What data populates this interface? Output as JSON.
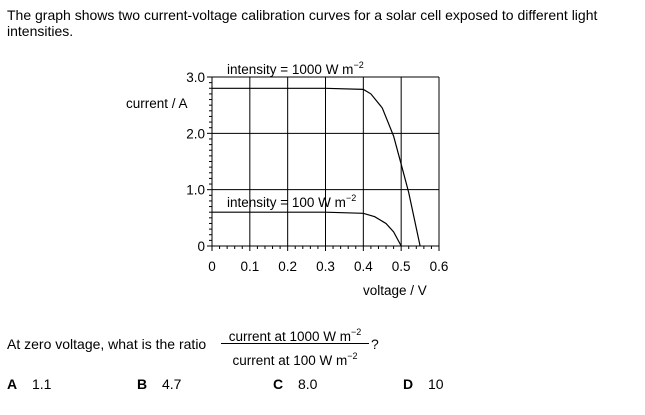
{
  "question": {
    "intro": "The graph shows two current-voltage calibration curves for a solar cell exposed to different light intensities.",
    "prompt_prefix": "At zero voltage, what is the ratio",
    "numerator": "current at 1000 W m",
    "denominator": "current at 100 W m",
    "exponent": "−2",
    "prompt_suffix": "?"
  },
  "options": [
    {
      "letter": "A",
      "value": "1.1"
    },
    {
      "letter": "B",
      "value": "4.7"
    },
    {
      "letter": "C",
      "value": "8.0"
    },
    {
      "letter": "D",
      "value": "10"
    }
  ],
  "chart_data": {
    "type": "line",
    "xlabel": "voltage / V",
    "ylabel": "current / A",
    "xlim": [
      0,
      0.6
    ],
    "ylim": [
      0,
      3.0
    ],
    "x_ticks": [
      "0",
      "0.1",
      "0.2",
      "0.3",
      "0.4",
      "0.5",
      "0.6"
    ],
    "y_ticks": [
      "0",
      "1.0",
      "2.0",
      "3.0"
    ],
    "grid": true,
    "series": [
      {
        "name": "intensity = 1000 W m",
        "name_exponent": "−2",
        "x": [
          0,
          0.1,
          0.2,
          0.3,
          0.4,
          0.42,
          0.45,
          0.48,
          0.5,
          0.52,
          0.55
        ],
        "y": [
          2.8,
          2.8,
          2.8,
          2.8,
          2.78,
          2.7,
          2.45,
          1.95,
          1.45,
          0.95,
          0
        ]
      },
      {
        "name": "intensity = 100 W m",
        "name_exponent": "−2",
        "x": [
          0,
          0.1,
          0.2,
          0.3,
          0.4,
          0.43,
          0.46,
          0.48,
          0.5
        ],
        "y": [
          0.6,
          0.6,
          0.6,
          0.6,
          0.58,
          0.52,
          0.4,
          0.25,
          0
        ]
      }
    ]
  }
}
